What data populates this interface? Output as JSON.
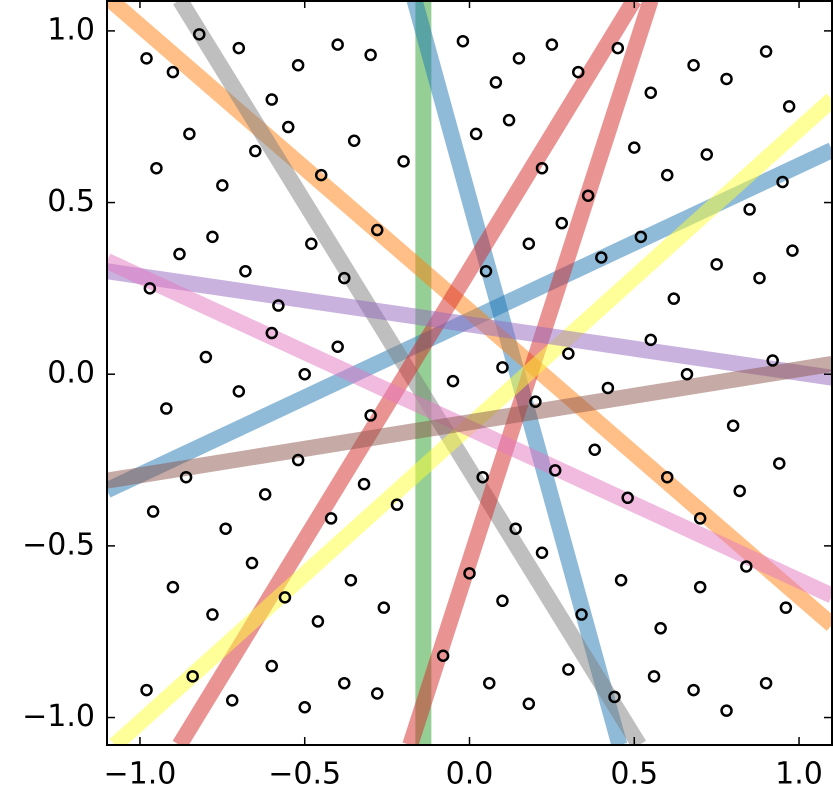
{
  "chart_data": {
    "type": "scatter",
    "xlim": [
      -1.1,
      1.1
    ],
    "ylim": [
      -1.08,
      1.09
    ],
    "xticks": [
      {
        "value": -1.0,
        "label": "−1.0"
      },
      {
        "value": -0.5,
        "label": "−0.5"
      },
      {
        "value": 0.0,
        "label": "0.0"
      },
      {
        "value": 0.5,
        "label": "0.5"
      },
      {
        "value": 1.0,
        "label": "1.0"
      }
    ],
    "yticks": [
      {
        "value": -1.0,
        "label": "−1.0"
      },
      {
        "value": -0.5,
        "label": "−0.5"
      },
      {
        "value": 0.0,
        "label": "0.0"
      },
      {
        "value": 0.5,
        "label": "0.5"
      },
      {
        "value": 1.0,
        "label": "1.0"
      }
    ],
    "series": [
      {
        "color": "#000000",
        "x": [
          -0.98,
          -0.9,
          -0.82,
          -0.7,
          -0.6,
          -0.52,
          -0.4,
          -0.3,
          -0.02,
          0.08,
          0.15,
          0.25,
          0.33,
          0.45,
          0.55,
          0.68,
          0.78,
          0.9,
          0.97,
          -0.95,
          -0.85,
          -0.75,
          -0.65,
          -0.55,
          -0.45,
          -0.35,
          -0.2,
          0.02,
          0.12,
          0.22,
          0.36,
          0.5,
          0.6,
          0.72,
          0.85,
          0.95,
          -0.97,
          -0.88,
          -0.78,
          -0.68,
          -0.58,
          -0.48,
          -0.38,
          -0.28,
          0.05,
          0.18,
          0.28,
          0.4,
          0.52,
          0.62,
          0.75,
          0.88,
          0.98,
          -0.92,
          -0.8,
          -0.7,
          -0.6,
          -0.5,
          -0.4,
          -0.3,
          -0.05,
          0.1,
          0.2,
          0.3,
          0.42,
          0.55,
          0.66,
          0.8,
          0.92,
          -0.96,
          -0.86,
          -0.74,
          -0.62,
          -0.52,
          -0.42,
          -0.32,
          -0.22,
          0.04,
          0.14,
          0.26,
          0.38,
          0.48,
          0.6,
          0.7,
          0.82,
          0.94,
          -0.9,
          -0.78,
          -0.66,
          -0.56,
          -0.46,
          -0.36,
          -0.26,
          0.0,
          0.1,
          0.22,
          0.34,
          0.46,
          0.58,
          0.7,
          0.84,
          0.96,
          -0.98,
          -0.84,
          -0.72,
          -0.6,
          -0.5,
          -0.38,
          -0.28,
          -0.08,
          0.06,
          0.18,
          0.3,
          0.44,
          0.56,
          0.68,
          0.78,
          0.9
        ],
        "values": [
          0.92,
          0.88,
          0.99,
          0.95,
          0.8,
          0.9,
          0.96,
          0.93,
          0.97,
          0.85,
          0.92,
          0.96,
          0.88,
          0.95,
          0.82,
          0.9,
          0.86,
          0.94,
          0.78,
          0.6,
          0.7,
          0.55,
          0.65,
          0.72,
          0.58,
          0.68,
          0.62,
          0.7,
          0.74,
          0.6,
          0.52,
          0.66,
          0.58,
          0.64,
          0.48,
          0.56,
          0.25,
          0.35,
          0.4,
          0.3,
          0.2,
          0.38,
          0.28,
          0.42,
          0.3,
          0.38,
          0.44,
          0.34,
          0.4,
          0.22,
          0.32,
          0.28,
          0.36,
          -0.1,
          0.05,
          -0.05,
          0.12,
          0.0,
          0.08,
          -0.12,
          -0.02,
          0.02,
          -0.08,
          0.06,
          -0.04,
          0.1,
          0.0,
          -0.15,
          0.04,
          -0.4,
          -0.3,
          -0.45,
          -0.35,
          -0.25,
          -0.42,
          -0.32,
          -0.38,
          -0.3,
          -0.45,
          -0.28,
          -0.22,
          -0.36,
          -0.3,
          -0.42,
          -0.34,
          -0.26,
          -0.62,
          -0.7,
          -0.55,
          -0.65,
          -0.72,
          -0.6,
          -0.68,
          -0.58,
          -0.66,
          -0.52,
          -0.7,
          -0.6,
          -0.74,
          -0.62,
          -0.56,
          -0.68,
          -0.92,
          -0.88,
          -0.95,
          -0.85,
          -0.97,
          -0.9,
          -0.93,
          -0.82,
          -0.9,
          -0.96,
          -0.86,
          -0.94,
          -0.88,
          -0.92,
          -0.98,
          -0.9
        ]
      }
    ],
    "lines": [
      {
        "color": "#2ca02c",
        "x": [
          -0.14,
          -0.14
        ],
        "values": [
          -1.08,
          1.09
        ]
      },
      {
        "color": "#1f77b4",
        "x": [
          -0.167,
          0.455
        ],
        "values": [
          1.09,
          -1.08
        ]
      },
      {
        "color": "#1f77b4",
        "x": [
          -1.1,
          1.1
        ],
        "values": [
          -0.338,
          0.653
        ]
      },
      {
        "color": "#ff7f0e",
        "x": [
          -1.09,
          1.1
        ],
        "values": [
          1.09,
          -0.73
        ]
      },
      {
        "color": "#7f7f7f",
        "x": [
          -0.879,
          0.515
        ],
        "values": [
          1.09,
          -1.08
        ]
      },
      {
        "color": "#d62728",
        "x": [
          -0.88,
          0.5
        ],
        "values": [
          -1.08,
          1.09
        ]
      },
      {
        "color": "#d62728",
        "x": [
          -0.18,
          0.55
        ],
        "values": [
          -1.08,
          1.09
        ]
      },
      {
        "color": "#ffff33",
        "x": [
          -1.076,
          1.1
        ],
        "values": [
          -1.08,
          0.8
        ]
      },
      {
        "color": "#9467bd",
        "x": [
          -1.1,
          1.1
        ],
        "values": [
          0.3,
          -0.01
        ]
      },
      {
        "color": "#e377c2",
        "x": [
          -1.1,
          1.1
        ],
        "values": [
          0.33,
          -0.645
        ]
      },
      {
        "color": "#8c564b",
        "x": [
          -1.1,
          1.1
        ],
        "values": [
          -0.31,
          0.03
        ]
      }
    ]
  }
}
